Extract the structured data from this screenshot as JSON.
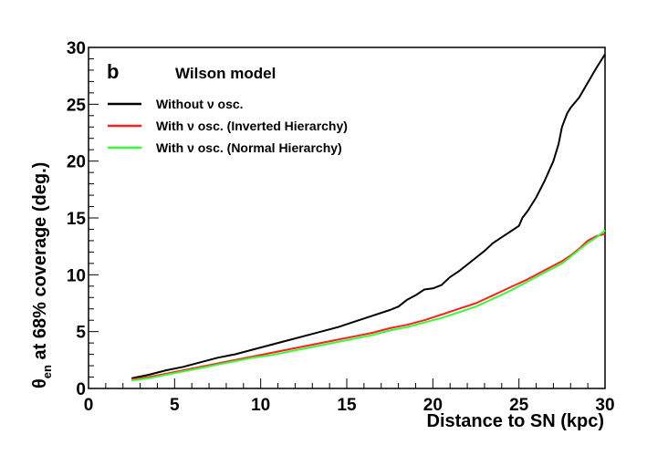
{
  "chart_data": {
    "type": "line",
    "panel_label": "b",
    "title": "Wilson model",
    "xlabel": "Distance to SN (kpc)",
    "ylabel": {
      "main": "θ",
      "subscript": "en",
      "rest": " at 68% coverage (deg.)"
    },
    "xlim": [
      0,
      30
    ],
    "ylim": [
      0,
      30
    ],
    "xticks": [
      "0",
      "5",
      "10",
      "15",
      "20",
      "25",
      "30"
    ],
    "yticks": [
      "0",
      "5",
      "10",
      "15",
      "20",
      "25",
      "30"
    ],
    "legend_position": "top-left",
    "grid": false,
    "series": [
      {
        "name": "Without ν osc.",
        "color": "#000000",
        "x": [
          2.5,
          3.5,
          4.5,
          5.5,
          6.5,
          7.5,
          8.5,
          9.5,
          10.5,
          11.5,
          12.5,
          13.5,
          14.5,
          15.5,
          16.5,
          17.5,
          18.0,
          18.5,
          19.0,
          19.5,
          20.0,
          20.5,
          21.0,
          21.5,
          22.0,
          22.5,
          23.0,
          23.5,
          24.0,
          24.5,
          25.0,
          25.2,
          25.5,
          26.0,
          26.5,
          27.0,
          27.3,
          27.5,
          27.8,
          28.0,
          28.5,
          29.0,
          29.5,
          30.0
        ],
        "y": [
          0.9,
          1.2,
          1.6,
          1.9,
          2.3,
          2.7,
          3.0,
          3.4,
          3.8,
          4.2,
          4.6,
          5.0,
          5.4,
          5.9,
          6.4,
          6.9,
          7.2,
          7.8,
          8.2,
          8.7,
          8.8,
          9.1,
          9.8,
          10.3,
          10.9,
          11.5,
          12.1,
          12.8,
          13.3,
          13.8,
          14.3,
          15.0,
          15.6,
          16.8,
          18.3,
          20.0,
          21.5,
          23.0,
          24.2,
          24.7,
          25.6,
          26.9,
          28.2,
          29.4
        ]
      },
      {
        "name": "With ν osc. (Inverted Hierarchy)",
        "color": "#ff2020",
        "x": [
          2.5,
          3.5,
          4.5,
          5.5,
          6.5,
          7.5,
          8.5,
          9.5,
          10.5,
          11.5,
          12.5,
          13.5,
          14.5,
          15.5,
          16.5,
          17.5,
          18.5,
          19.5,
          20.5,
          21.5,
          22.5,
          23.5,
          24.5,
          25.5,
          26.5,
          27.5,
          28.0,
          28.5,
          29.0,
          29.5,
          30.0
        ],
        "y": [
          0.8,
          1.0,
          1.3,
          1.6,
          1.9,
          2.2,
          2.5,
          2.8,
          3.1,
          3.4,
          3.7,
          4.0,
          4.3,
          4.6,
          4.9,
          5.3,
          5.6,
          6.0,
          6.5,
          7.0,
          7.5,
          8.2,
          8.9,
          9.6,
          10.4,
          11.2,
          11.7,
          12.3,
          13.0,
          13.4,
          13.6
        ]
      },
      {
        "name": "With ν osc. (Normal Hierarchy)",
        "color": "#33ff33",
        "x": [
          2.5,
          3.5,
          4.5,
          5.5,
          6.5,
          7.5,
          8.5,
          9.5,
          10.5,
          11.5,
          12.5,
          13.5,
          14.5,
          15.5,
          16.5,
          17.5,
          18.5,
          19.5,
          20.5,
          21.5,
          22.5,
          23.5,
          24.5,
          25.5,
          26.5,
          27.5,
          28.0,
          28.5,
          29.0,
          29.5,
          30.0
        ],
        "y": [
          0.7,
          0.9,
          1.2,
          1.5,
          1.8,
          2.1,
          2.4,
          2.7,
          2.9,
          3.2,
          3.5,
          3.8,
          4.1,
          4.4,
          4.7,
          5.1,
          5.4,
          5.8,
          6.2,
          6.7,
          7.2,
          7.9,
          8.6,
          9.4,
          10.2,
          11.0,
          11.6,
          12.2,
          12.8,
          13.3,
          13.9
        ]
      }
    ]
  }
}
